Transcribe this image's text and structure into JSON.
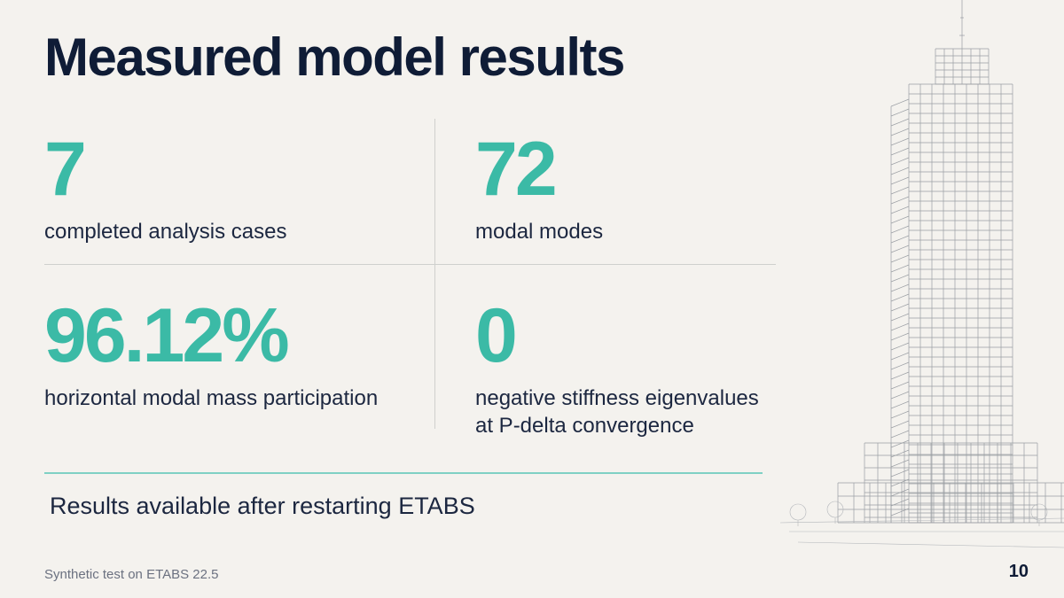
{
  "slide": {
    "title": "Measured model results",
    "stats": [
      {
        "value": "7",
        "label": "completed analysis cases"
      },
      {
        "value": "72",
        "label": "modal modes"
      },
      {
        "value": "96.12%",
        "label": "horizontal modal mass participation"
      },
      {
        "value": "0",
        "label": "negative stiffness eigenvalues at P-delta convergence"
      }
    ],
    "note": "Results available after restarting ETABS",
    "footer": "Synthetic test on ETABS 22.5",
    "page_number": "10"
  },
  "colors": {
    "background": "#f4f2ee",
    "title": "#0f1c36",
    "accent": "#3bbaa6",
    "text": "#1c2740"
  },
  "illustration": {
    "icon": "skyscraper-sketch-icon"
  }
}
